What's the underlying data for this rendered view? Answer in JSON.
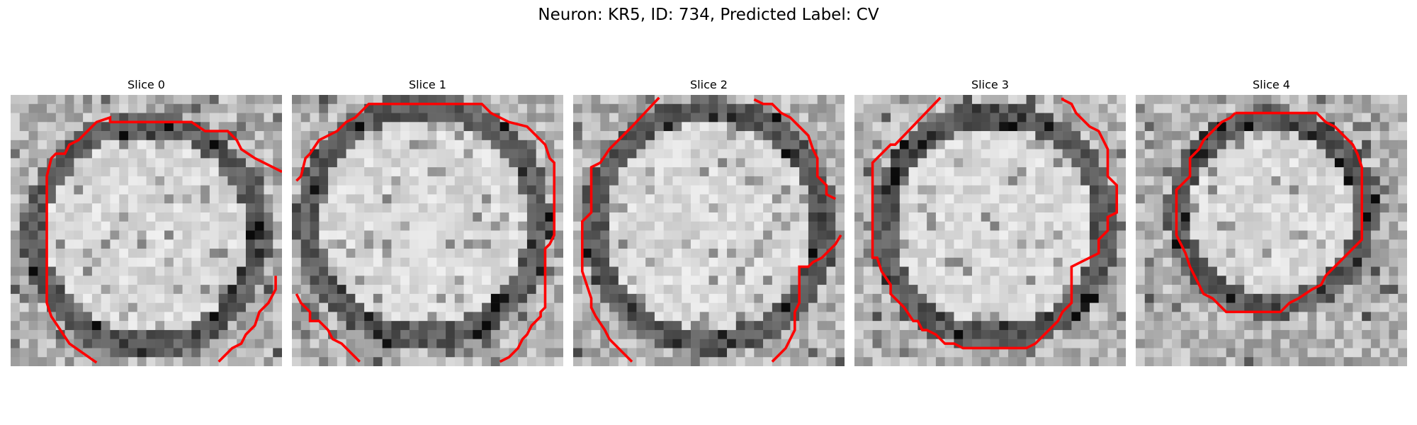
{
  "figure": {
    "title": "Neuron: KR5, ID: 734, Predicted Label: CV"
  },
  "panels": [
    {
      "title": "Slice 0",
      "contour_color": "#ff0000",
      "background": "grayscale-microscopy"
    },
    {
      "title": "Slice 1",
      "contour_color": "#ff0000",
      "background": "grayscale-microscopy"
    },
    {
      "title": "Slice 2",
      "contour_color": "#ff0000",
      "background": "grayscale-microscopy"
    },
    {
      "title": "Slice 3",
      "contour_color": "#ff0000",
      "background": "grayscale-microscopy"
    },
    {
      "title": "Slice 4",
      "contour_color": "#ff0000",
      "background": "grayscale-microscopy"
    }
  ]
}
